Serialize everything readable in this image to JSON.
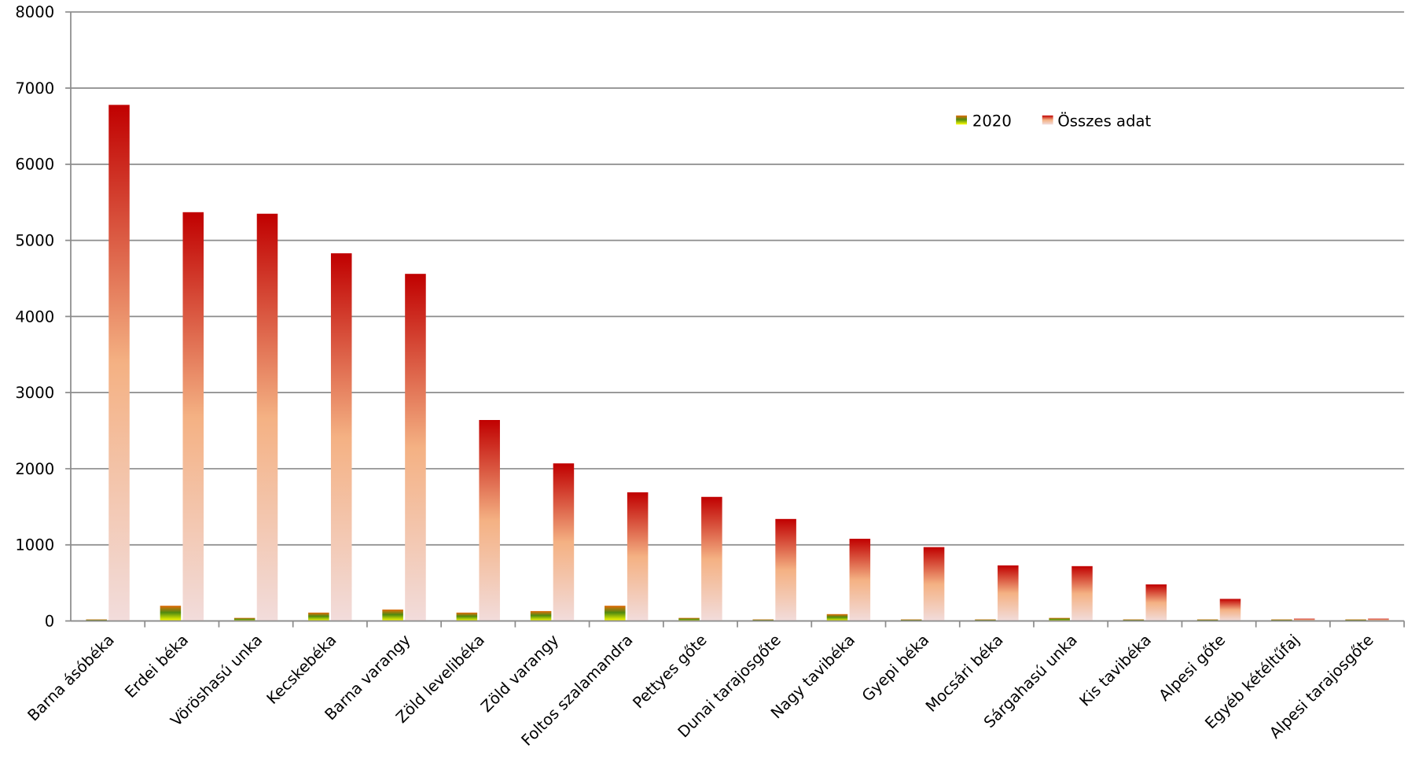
{
  "chart_data": {
    "type": "bar",
    "title": "",
    "xlabel": "",
    "ylabel": "",
    "ylim": [
      0,
      8000
    ],
    "yticks": [
      "0",
      "1000",
      "2000",
      "3000",
      "4000",
      "5000",
      "6000",
      "7000",
      "8000"
    ],
    "grid": true,
    "legend": "top-right",
    "categories": [
      "Barna ásóbéka",
      "Erdei béka",
      "Vöröshasú unka",
      "Kecskebéka",
      "Barna varangy",
      "Zöld levelibéka",
      "Zöld varangy",
      "Foltos szalamandra",
      "Pettyes gőte",
      "Dunai tarajosgőte",
      "Nagy tavibéka",
      "Gyepi béka",
      "Mocsári béka",
      "Sárgahasú unka",
      "Kis tavibéka",
      "Alpesi gőte",
      "Egyéb kétéltűfaj",
      "Alpesi tarajosgőte"
    ],
    "series": [
      {
        "name": "2020",
        "colors": [
          "#e46c0a",
          "#4f8a10",
          "#ffff00"
        ],
        "values": [
          20,
          200,
          40,
          110,
          150,
          110,
          130,
          200,
          40,
          20,
          90,
          20,
          20,
          40,
          20,
          20,
          20,
          20
        ]
      },
      {
        "name": "Összes adat",
        "colors": [
          "#c00000",
          "#f4b183",
          "#f2dcdb"
        ],
        "values": [
          6780,
          5370,
          5350,
          4830,
          4560,
          2640,
          2070,
          1690,
          1630,
          1340,
          1080,
          970,
          730,
          720,
          480,
          290,
          30,
          30
        ]
      }
    ]
  }
}
